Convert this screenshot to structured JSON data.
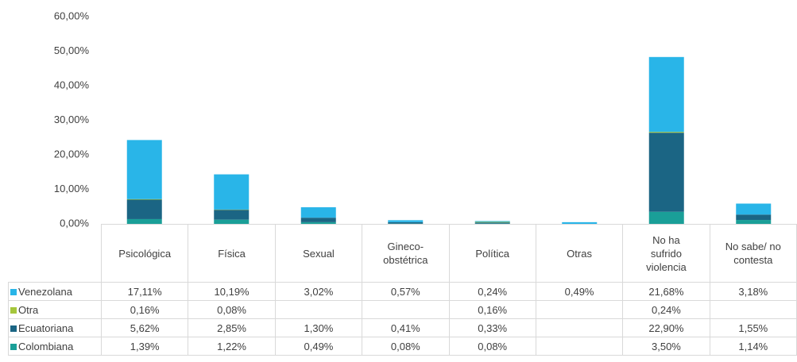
{
  "chart_data": {
    "type": "bar",
    "stacked": true,
    "categories": [
      "Psicológica",
      "Física",
      "Sexual",
      "Gineco-obstétrica",
      "Política",
      "Otras",
      "No ha sufrido violencia",
      "No sabe/ no contesta"
    ],
    "series": [
      {
        "name": "Colombiana",
        "color": "#1a9f98",
        "values": [
          1.39,
          1.22,
          0.49,
          0.08,
          0.08,
          null,
          3.5,
          1.14
        ],
        "value_labels": [
          "1,39%",
          "1,22%",
          "0,49%",
          "0,08%",
          "0,08%",
          null,
          "3,50%",
          "1,14%"
        ]
      },
      {
        "name": "Ecuatoriana",
        "color": "#1b6584",
        "values": [
          5.62,
          2.85,
          1.3,
          0.41,
          0.33,
          null,
          22.9,
          1.55
        ],
        "value_labels": [
          "5,62%",
          "2,85%",
          "1,30%",
          "0,41%",
          "0,33%",
          null,
          "22,90%",
          "1,55%"
        ]
      },
      {
        "name": "Otra",
        "color": "#a5c63b",
        "values": [
          0.16,
          0.08,
          null,
          null,
          0.16,
          null,
          0.24,
          null
        ],
        "value_labels": [
          "0,16%",
          "0,08%",
          null,
          null,
          "0,16%",
          null,
          "0,24%",
          null
        ]
      },
      {
        "name": "Venezolana",
        "color": "#29b5e8",
        "values": [
          17.11,
          10.19,
          3.02,
          0.57,
          0.24,
          0.49,
          21.68,
          3.18
        ],
        "value_labels": [
          "17,11%",
          "10,19%",
          "3,02%",
          "0,57%",
          "0,24%",
          "0,49%",
          "21,68%",
          "3,18%"
        ]
      }
    ],
    "ylim": [
      0,
      60
    ],
    "yticks": [
      {
        "value": 0,
        "label": "0,00%"
      },
      {
        "value": 10,
        "label": "10,00%"
      },
      {
        "value": 20,
        "label": "20,00%"
      },
      {
        "value": 30,
        "label": "30,00%"
      },
      {
        "value": 40,
        "label": "40,00%"
      },
      {
        "value": 50,
        "label": "50,00%"
      },
      {
        "value": 60,
        "label": "60,00%"
      }
    ],
    "grid": false,
    "legend": "table"
  }
}
